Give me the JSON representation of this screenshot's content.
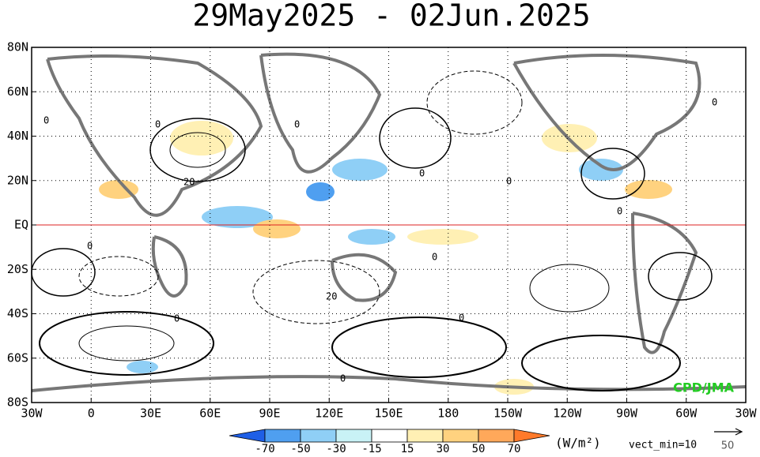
{
  "title": "29May2025 - 02Jun.2025",
  "map": {
    "lon_labels": [
      "30W",
      "0",
      "30E",
      "60E",
      "90E",
      "120E",
      "150E",
      "180",
      "150W",
      "120W",
      "90W",
      "60W",
      "30W"
    ],
    "lat_labels": [
      "80N",
      "60N",
      "40N",
      "20N",
      "EQ",
      "20S",
      "40S",
      "60S",
      "80S"
    ],
    "contour_labels": [
      "0",
      "0",
      "0",
      "20",
      "0",
      "0",
      "0",
      "0",
      "0",
      "20",
      "0",
      "0",
      "0",
      "0"
    ]
  },
  "colorbar": {
    "ticks": [
      -70,
      -50,
      -30,
      -15,
      15,
      30,
      50,
      70
    ],
    "colors": [
      "#1f5fe6",
      "#4f9ff0",
      "#8fcff6",
      "#c9f2f6",
      "#ffffff",
      "#fff0b4",
      "#ffd27f",
      "#ffa85a",
      "#ff7a2a"
    ],
    "units": "(W/m²)",
    "vect_min": "vect_min=10"
  },
  "ref_vector_label": "50",
  "credit": "CPD/JMA"
}
